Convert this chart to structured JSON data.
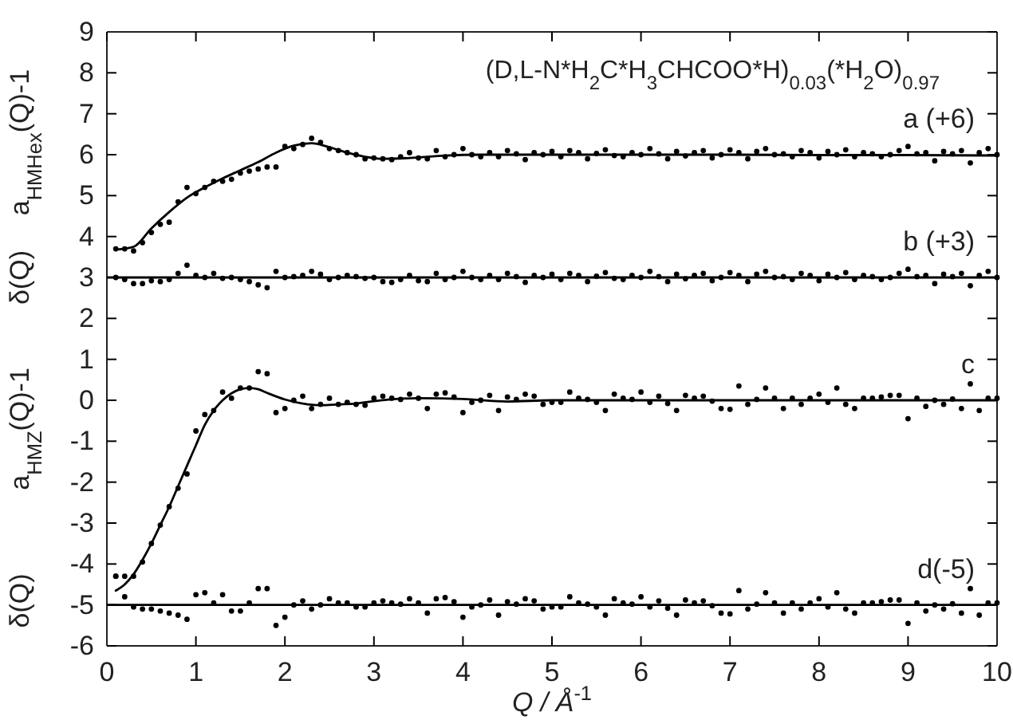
{
  "chart_data": {
    "type": "scatter",
    "title": "(D,L-N*H$_{2}$C*H$_{3}$CHCOO*H)$_{0.03}$(*H$_{2}$O)$_{0.97}$",
    "xlabel": "Q / Å$^{-1}$",
    "ylabel": "a$_{HMHex}$(Q)-1",
    "annotations": [
      "δ(Q)",
      "a$_{HMZ}$(Q)-1",
      "δ(Q)"
    ],
    "x": [
      0.1,
      0.2,
      0.3,
      0.4,
      0.5,
      0.6,
      0.7,
      0.8,
      0.9,
      1.0,
      1.1,
      1.2,
      1.3,
      1.4,
      1.5,
      1.6,
      1.7,
      1.8,
      1.9,
      2.0,
      2.1,
      2.2,
      2.3,
      2.4,
      2.5,
      2.6,
      2.7,
      2.8,
      2.9,
      3.0,
      3.1,
      3.2,
      3.3,
      3.4,
      3.5,
      3.6,
      3.7,
      3.8,
      3.9,
      4.0,
      4.1,
      4.2,
      4.3,
      4.4,
      4.5,
      4.6,
      4.7,
      4.8,
      4.9,
      5.0,
      5.1,
      5.2,
      5.3,
      5.4,
      5.5,
      5.6,
      5.7,
      5.8,
      5.9,
      6.0,
      6.1,
      6.2,
      6.3,
      6.4,
      6.5,
      6.6,
      6.7,
      6.8,
      6.9,
      7.0,
      7.1,
      7.2,
      7.3,
      7.4,
      7.5,
      7.6,
      7.7,
      7.8,
      7.9,
      8.0,
      8.1,
      8.2,
      8.3,
      8.4,
      8.5,
      8.6,
      8.7,
      8.8,
      8.9,
      9.0,
      9.1,
      9.2,
      9.3,
      9.4,
      9.5,
      9.6,
      9.7,
      9.8,
      9.9,
      10.0
    ],
    "series": [
      {
        "name": "a (+6)",
        "color": "#000000",
        "values": [
          3.7,
          3.7,
          3.65,
          3.85,
          4.1,
          4.3,
          4.35,
          4.85,
          5.2,
          5.05,
          5.2,
          5.35,
          5.35,
          5.4,
          5.55,
          5.6,
          5.65,
          5.7,
          5.7,
          6.2,
          6.15,
          6.25,
          6.4,
          6.3,
          6.15,
          6.1,
          6.05,
          6.0,
          5.9,
          5.92,
          5.9,
          5.88,
          5.95,
          6.05,
          5.92,
          5.9,
          6.1,
          5.95,
          6.0,
          6.15,
          6.0,
          5.95,
          6.05,
          5.95,
          6.1,
          6.02,
          5.88,
          6.05,
          6.0,
          6.08,
          5.95,
          6.1,
          6.05,
          5.9,
          6.03,
          6.12,
          5.98,
          5.95,
          6.05,
          6.0,
          6.15,
          6.02,
          5.9,
          6.08,
          5.97,
          6.05,
          6.1,
          5.92,
          6.0,
          6.12,
          6.05,
          5.9,
          6.08,
          6.15,
          6.0,
          6.02,
          5.95,
          6.1,
          6.05,
          5.92,
          6.08,
          6.0,
          6.12,
          5.95,
          6.05,
          6.02,
          5.95,
          6.0,
          6.1,
          6.2,
          6.02,
          6.05,
          5.85,
          6.08,
          6.02,
          6.1,
          5.8,
          6.05,
          6.15,
          6.0
        ]
      },
      {
        "name": "b (+3)",
        "color": "#000000",
        "values": [
          3.0,
          2.95,
          2.85,
          2.85,
          2.92,
          2.9,
          2.95,
          3.1,
          3.3,
          3.05,
          3.0,
          3.1,
          2.98,
          3.0,
          2.95,
          2.9,
          2.82,
          2.75,
          3.15,
          3.0,
          3.02,
          3.05,
          3.15,
          3.08,
          2.95,
          3.0,
          3.05,
          3.02,
          2.98,
          3.0,
          2.9,
          2.88,
          2.95,
          3.05,
          2.92,
          2.9,
          3.1,
          2.95,
          3.0,
          3.15,
          3.0,
          2.95,
          3.05,
          2.95,
          3.1,
          3.02,
          2.88,
          3.05,
          3.0,
          3.08,
          2.95,
          3.1,
          3.05,
          2.9,
          3.03,
          3.12,
          2.98,
          2.95,
          3.05,
          3.0,
          3.15,
          3.02,
          2.9,
          3.08,
          2.97,
          3.05,
          3.1,
          2.92,
          3.0,
          3.12,
          3.05,
          2.9,
          3.08,
          3.15,
          3.0,
          3.02,
          2.95,
          3.1,
          3.05,
          2.92,
          3.08,
          3.0,
          3.12,
          2.95,
          3.05,
          3.02,
          2.95,
          3.0,
          3.1,
          3.2,
          3.02,
          3.05,
          2.85,
          3.08,
          3.02,
          3.1,
          2.8,
          3.05,
          3.15,
          3.0
        ]
      },
      {
        "name": "c",
        "color": "#000000",
        "values": [
          -4.3,
          -4.3,
          -4.3,
          -3.95,
          -3.5,
          -3.05,
          -2.6,
          -2.15,
          -1.8,
          -0.75,
          -0.35,
          -0.25,
          0.2,
          0.05,
          0.3,
          0.3,
          0.7,
          0.65,
          -0.3,
          -0.2,
          0.0,
          0.1,
          -0.2,
          -0.1,
          0.05,
          -0.1,
          -0.05,
          -0.1,
          -0.12,
          0.05,
          0.1,
          0.05,
          0.02,
          0.15,
          0.05,
          -0.2,
          0.15,
          0.18,
          0.08,
          -0.3,
          -0.05,
          0.0,
          0.12,
          -0.25,
          0.08,
          0.02,
          0.15,
          0.1,
          -0.1,
          -0.05,
          -0.05,
          0.2,
          0.05,
          0.02,
          -0.05,
          -0.25,
          0.15,
          0.05,
          0.02,
          0.2,
          -0.05,
          0.1,
          -0.08,
          -0.25,
          0.12,
          0.05,
          0.1,
          -0.02,
          -0.2,
          -0.22,
          0.35,
          -0.1,
          0.02,
          0.3,
          0.05,
          -0.2,
          0.05,
          -0.1,
          0.05,
          0.15,
          -0.05,
          0.3,
          -0.1,
          -0.2,
          0.05,
          0.05,
          0.08,
          0.12,
          0.12,
          -0.45,
          0.05,
          -0.15,
          0.0,
          -0.1,
          0.03,
          -0.2,
          0.4,
          -0.25,
          0.05,
          0.05
        ]
      },
      {
        "name": "d(-5)",
        "color": "#000000",
        "values": [
          -4.3,
          -4.8,
          -5.05,
          -5.1,
          -5.1,
          -5.15,
          -5.2,
          -5.25,
          -5.35,
          -4.75,
          -4.7,
          -4.95,
          -4.75,
          -5.15,
          -5.15,
          -4.95,
          -4.6,
          -4.6,
          -5.5,
          -5.3,
          -5.0,
          -4.9,
          -5.1,
          -5.0,
          -4.85,
          -4.95,
          -4.95,
          -5.05,
          -5.05,
          -4.95,
          -4.9,
          -4.95,
          -4.98,
          -4.85,
          -4.95,
          -5.2,
          -4.85,
          -4.82,
          -4.92,
          -5.3,
          -5.05,
          -5.0,
          -4.88,
          -5.25,
          -4.92,
          -4.98,
          -4.85,
          -4.9,
          -5.1,
          -5.05,
          -5.05,
          -4.8,
          -4.95,
          -4.98,
          -5.05,
          -5.25,
          -4.85,
          -4.95,
          -4.98,
          -4.8,
          -5.05,
          -4.9,
          -5.08,
          -5.25,
          -4.88,
          -4.95,
          -4.9,
          -5.02,
          -5.2,
          -5.22,
          -4.65,
          -5.1,
          -4.98,
          -4.7,
          -4.95,
          -5.2,
          -4.95,
          -5.1,
          -4.95,
          -4.85,
          -5.05,
          -4.7,
          -5.1,
          -5.2,
          -4.95,
          -4.95,
          -4.92,
          -4.88,
          -4.88,
          -5.45,
          -4.95,
          -5.15,
          -5.0,
          -5.1,
          -4.97,
          -5.2,
          -4.6,
          -5.25,
          -4.95,
          -4.95
        ]
      },
      {
        "type": "line",
        "marker": "none",
        "color": "#000000",
        "x": [
          0.1,
          0.3,
          0.5,
          0.7,
          0.9,
          1.1,
          1.3,
          1.5,
          1.7,
          1.9,
          2.1,
          2.3,
          2.5,
          2.7,
          2.9,
          3.1,
          3.4,
          3.8,
          4.2,
          5,
          6,
          7,
          8,
          9,
          10
        ],
        "values": [
          3.68,
          3.75,
          4.2,
          4.6,
          4.95,
          5.2,
          5.42,
          5.62,
          5.82,
          6.05,
          6.22,
          6.28,
          6.18,
          6.05,
          5.95,
          5.9,
          5.92,
          5.98,
          6.0,
          6.0,
          6.0,
          6.0,
          5.99,
          5.99,
          5.98
        ]
      },
      {
        "type": "line",
        "marker": "none",
        "color": "#000000",
        "x": [
          0.1,
          0.2,
          0.3,
          0.4,
          0.5,
          0.6,
          0.7,
          0.8,
          0.9,
          1.0,
          1.1,
          1.2,
          1.3,
          1.4,
          1.5,
          1.6,
          1.7,
          1.8,
          2.0,
          2.2,
          2.4,
          2.6,
          2.8,
          3.0,
          3.5,
          4.0,
          4.5,
          5,
          6,
          7,
          8,
          9,
          10
        ],
        "values": [
          -4.65,
          -4.5,
          -4.25,
          -3.9,
          -3.5,
          -3.05,
          -2.6,
          -2.1,
          -1.6,
          -1.1,
          -0.6,
          -0.25,
          0.0,
          0.17,
          0.27,
          0.3,
          0.27,
          0.18,
          0.02,
          -0.08,
          -0.12,
          -0.1,
          -0.08,
          -0.02,
          0.05,
          0.03,
          -0.03,
          0,
          0,
          0,
          0,
          0,
          0
        ]
      }
    ],
    "ref_lines": [
      {
        "axis": "y",
        "value": 3,
        "color": "#000000"
      },
      {
        "axis": "y",
        "value": -5,
        "color": "#000000"
      }
    ],
    "xlim": [
      0,
      10
    ],
    "xticks": [
      0,
      1,
      2,
      3,
      4,
      5,
      6,
      7,
      8,
      9,
      10
    ],
    "ylim": [
      -6,
      9
    ],
    "yticks": [
      -6,
      -5,
      -4,
      -3,
      -2,
      -1,
      0,
      1,
      2,
      3,
      4,
      5,
      6,
      7,
      8,
      9
    ],
    "grid": false,
    "legend": "right",
    "marker": "circle"
  }
}
